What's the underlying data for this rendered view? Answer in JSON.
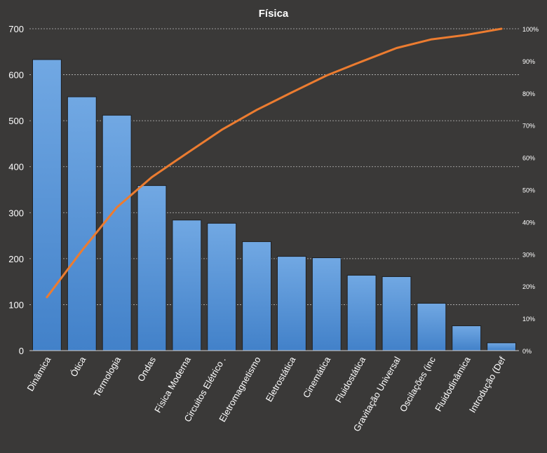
{
  "chart_data": {
    "type": "bar",
    "title": "Física",
    "xlabel": "",
    "ylabel": "",
    "categories": [
      "Dinâmica",
      "Ótica",
      "Termologia",
      "Ondas",
      "Física Moderna",
      "Circuitos Elétrico .",
      "Eletromagnetismo",
      "Eletrostática",
      "Cinemática",
      "Fluidostática",
      "Gravitação Universal",
      "Oscilações (inc",
      "Fluidodinâmica",
      "Introdução (Def"
    ],
    "series": [
      {
        "type": "bar",
        "axis": "left",
        "values": [
          633,
          552,
          512,
          359,
          284,
          277,
          237,
          205,
          202,
          164,
          161,
          103,
          54,
          17
        ]
      },
      {
        "type": "line",
        "axis": "right",
        "values": [
          16.6,
          31.1,
          44.5,
          53.9,
          61.3,
          68.6,
          74.8,
          80.2,
          85.5,
          89.8,
          94.0,
          96.7,
          98.1,
          100.0
        ]
      }
    ],
    "ylim": [
      0,
      700
    ],
    "yticks": [
      "0",
      "100",
      "200",
      "300",
      "400",
      "500",
      "600",
      "700"
    ],
    "y2lim": [
      0,
      100
    ],
    "y2ticks": [
      "0%",
      "10%",
      "20%",
      "30%",
      "40%",
      "50%",
      "60%",
      "70%",
      "80%",
      "90%",
      "100%"
    ],
    "grid": true,
    "colors": {
      "background": "#3a3938",
      "bar_top": "#71a8e3",
      "bar_bottom": "#4281c9",
      "bar_edge": "#1f1f1f",
      "line": "#ec7c30",
      "grid": "#bdbdbd",
      "text": "#ffffff"
    }
  }
}
